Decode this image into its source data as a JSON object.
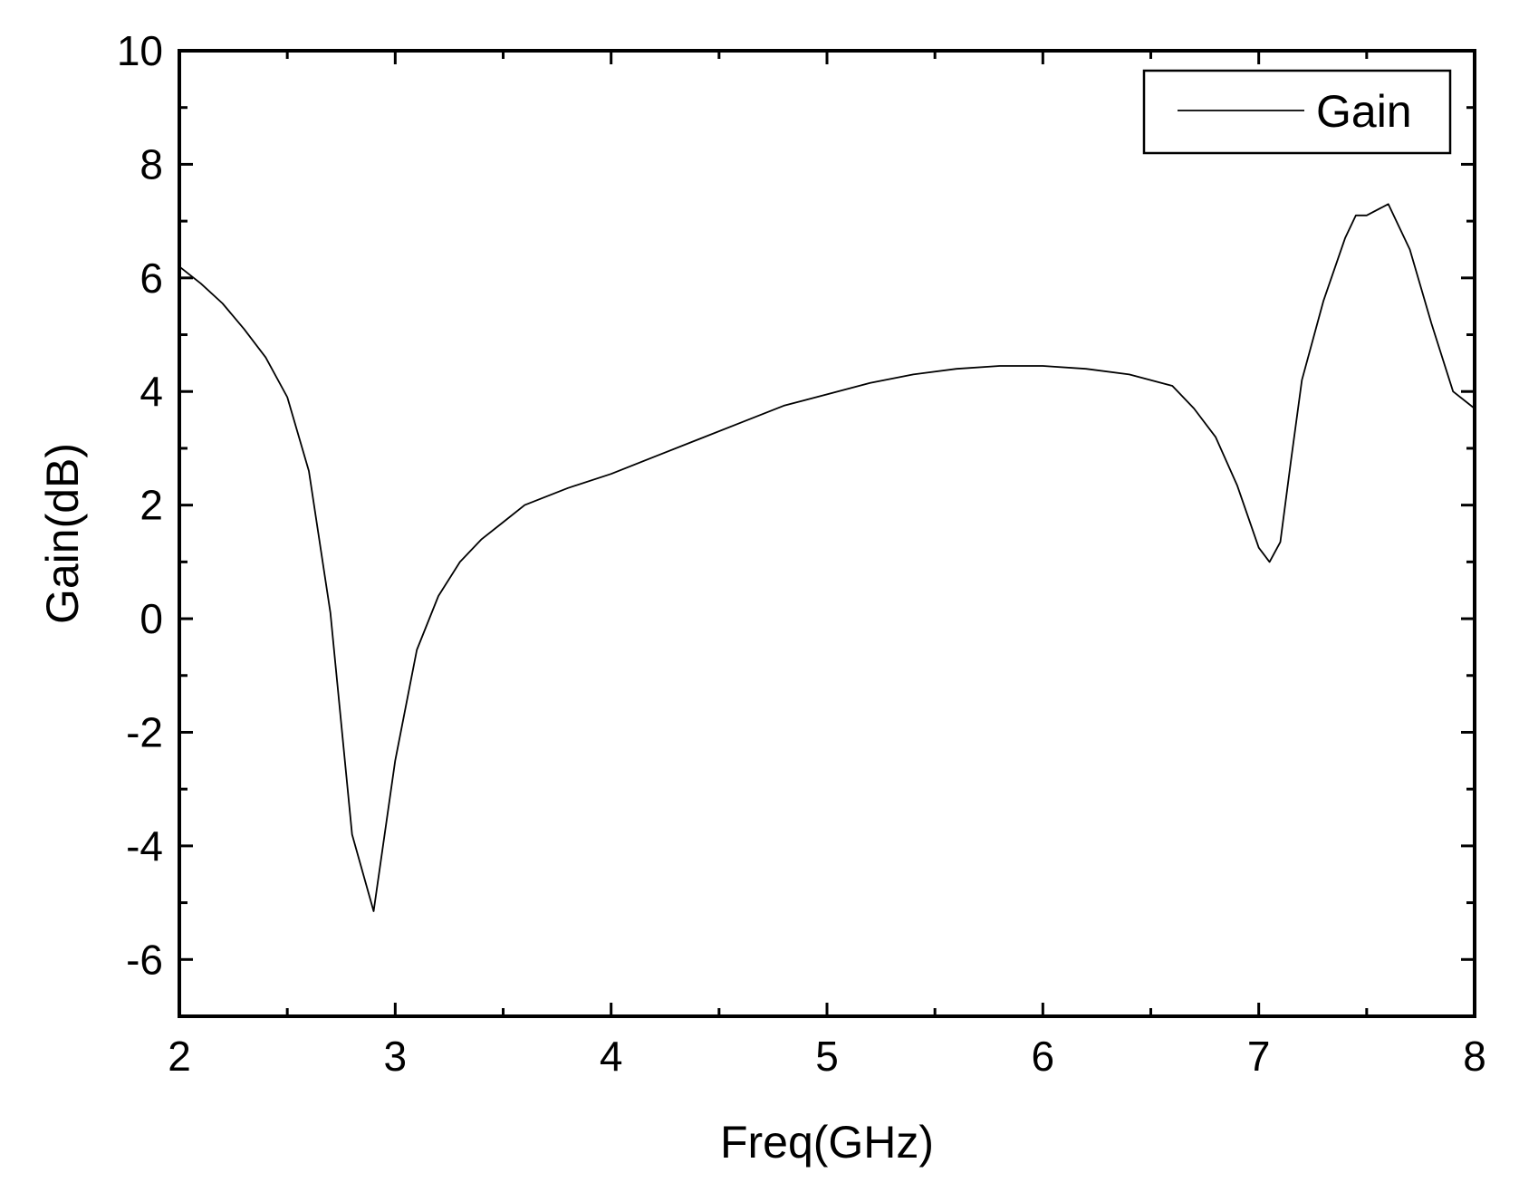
{
  "chart_data": {
    "type": "line",
    "xlabel": "Freq(GHz)",
    "ylabel": "Gain(dB)",
    "xlim": [
      2,
      8
    ],
    "ylim": [
      -7,
      10
    ],
    "x_ticks": [
      "2",
      "3",
      "4",
      "5",
      "6",
      "7",
      "8"
    ],
    "y_ticks": [
      "-6",
      "-4",
      "-2",
      "0",
      "2",
      "4",
      "6",
      "8",
      "10"
    ],
    "legend": {
      "position": "top-right",
      "entries": [
        "Gain"
      ]
    },
    "grid": false,
    "series": [
      {
        "name": "Gain",
        "color": "#000000",
        "x": [
          2.0,
          2.1,
          2.2,
          2.3,
          2.4,
          2.5,
          2.6,
          2.7,
          2.8,
          2.9,
          3.0,
          3.1,
          3.2,
          3.3,
          3.4,
          3.5,
          3.6,
          3.8,
          4.0,
          4.2,
          4.4,
          4.6,
          4.8,
          5.0,
          5.2,
          5.4,
          5.6,
          5.8,
          6.0,
          6.2,
          6.4,
          6.6,
          6.7,
          6.8,
          6.9,
          7.0,
          7.05,
          7.1,
          7.15,
          7.2,
          7.3,
          7.4,
          7.45,
          7.5,
          7.6,
          7.7,
          7.8,
          7.9,
          8.0
        ],
        "y": [
          6.2,
          5.9,
          5.55,
          5.1,
          4.6,
          3.9,
          2.6,
          0.1,
          -3.8,
          -5.15,
          -2.5,
          -0.55,
          0.4,
          1.0,
          1.4,
          1.7,
          2.0,
          2.3,
          2.55,
          2.85,
          3.15,
          3.45,
          3.75,
          3.95,
          4.15,
          4.3,
          4.4,
          4.45,
          4.45,
          4.4,
          4.3,
          4.1,
          3.7,
          3.2,
          2.35,
          1.25,
          1.0,
          1.35,
          2.8,
          4.2,
          5.6,
          6.7,
          7.1,
          7.1,
          7.3,
          6.5,
          5.2,
          4.0,
          3.7
        ]
      }
    ]
  }
}
